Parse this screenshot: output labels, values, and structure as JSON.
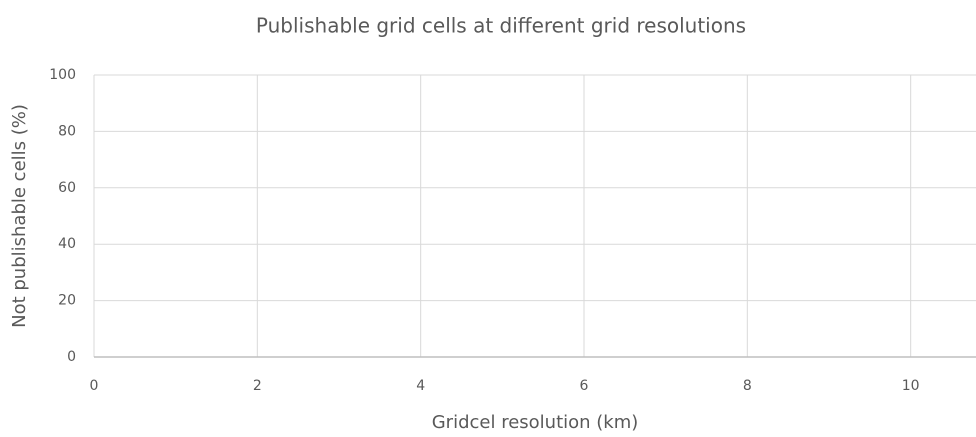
{
  "chart_data": {
    "type": "scatter",
    "title": "Publishable grid cells at different grid resolutions",
    "x_label": "Gridcel resolution (km)",
    "y_label": "Not publishable cells (%)",
    "series": [],
    "xlim": [
      0,
      10.8
    ],
    "xticks": [
      0,
      2,
      4,
      6,
      8,
      10
    ],
    "ylim": [
      0,
      100
    ],
    "yticks": [
      0,
      20,
      40,
      60,
      80,
      100
    ],
    "grid": true
  }
}
